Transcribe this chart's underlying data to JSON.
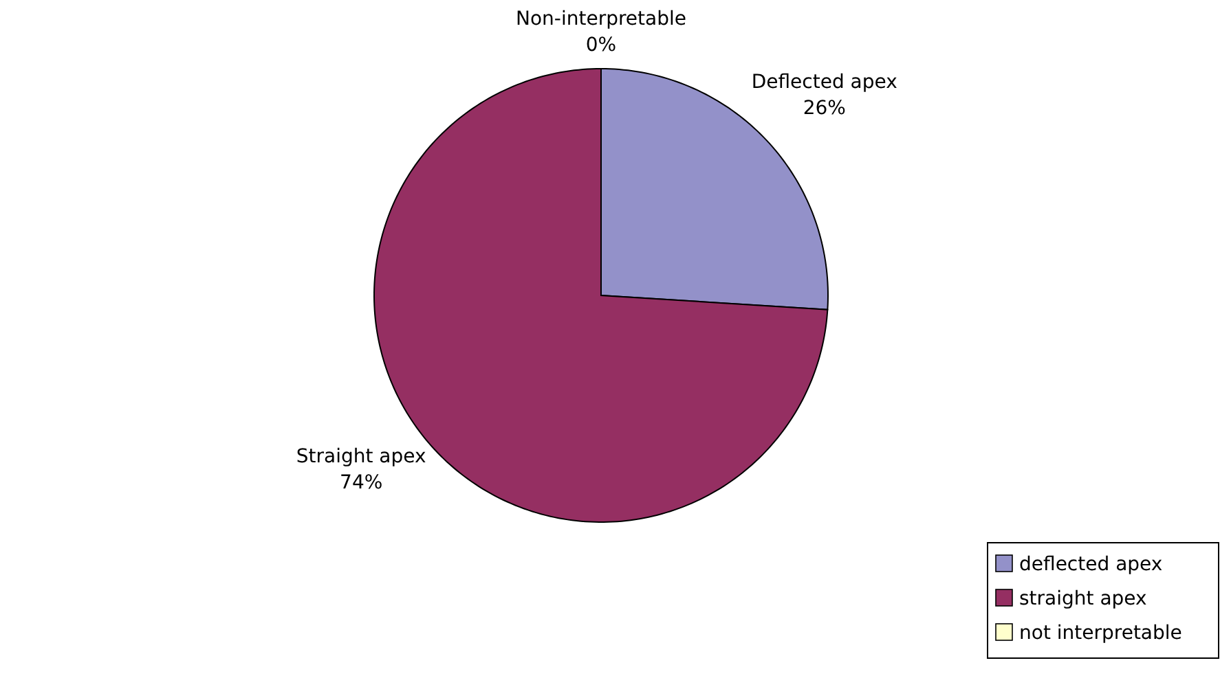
{
  "chart_data": {
    "type": "pie",
    "categories": [
      "deflected apex",
      "straight apex",
      "not interpretable"
    ],
    "values": [
      26,
      74,
      0
    ],
    "colors": [
      "#9391c9",
      "#952f62",
      "#ffffcc"
    ],
    "value_labels": [
      "Deflected apex\n26%",
      "Straight apex\n74%",
      "Non-interpretable\n0%"
    ],
    "legend": "bottom right"
  }
}
